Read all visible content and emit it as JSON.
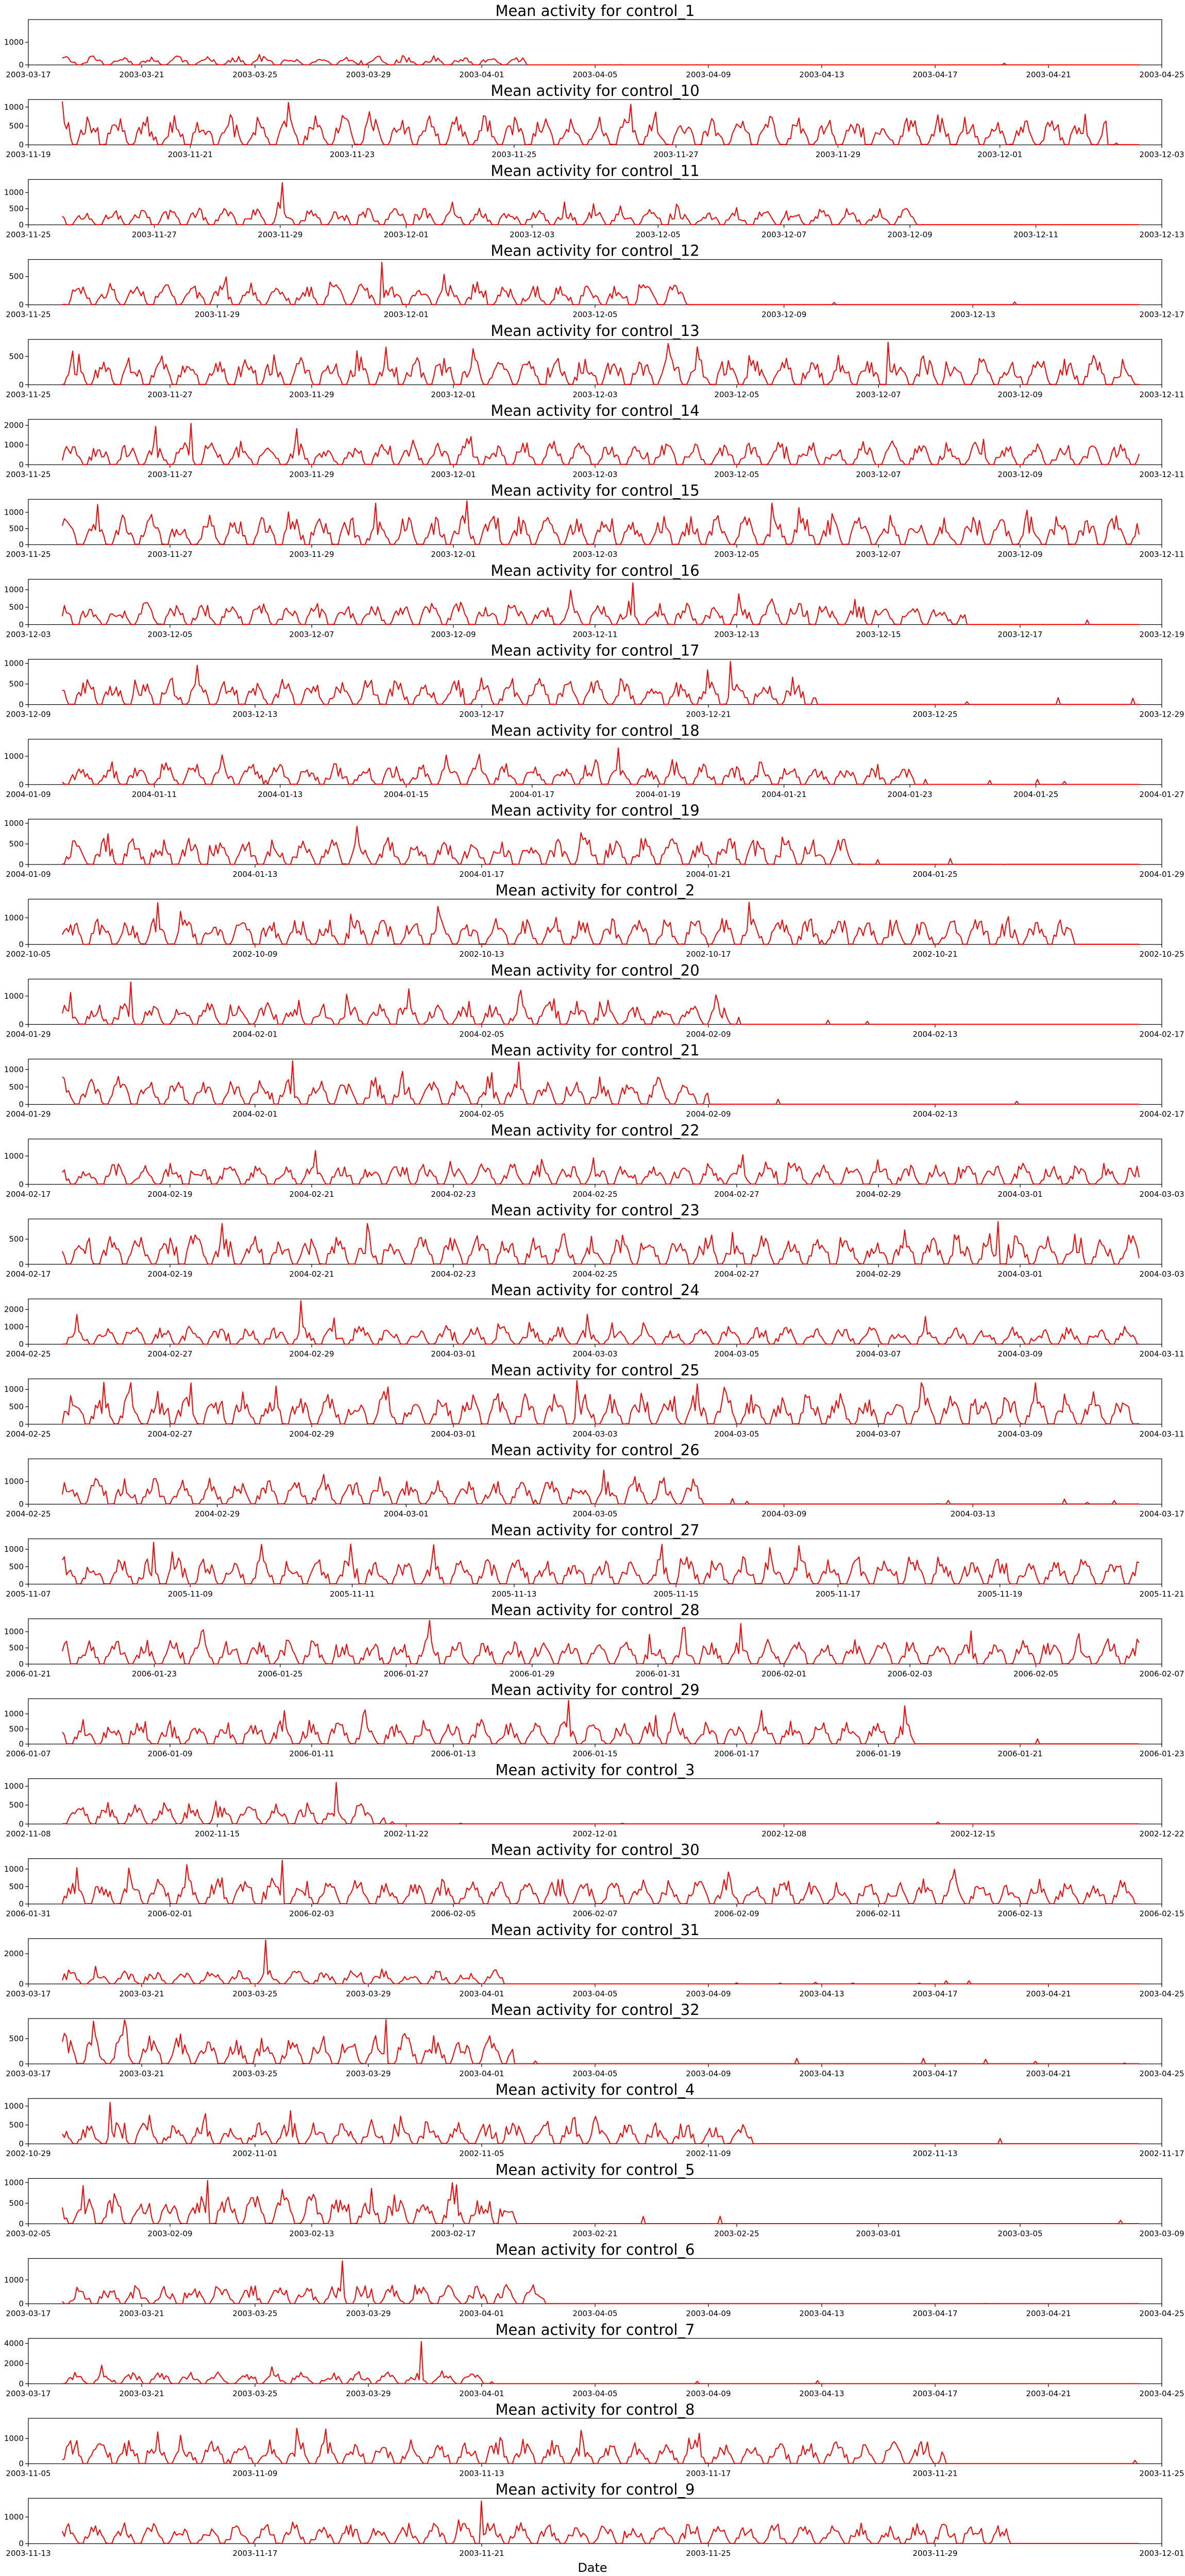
{
  "figure": {
    "xlabel": "Date",
    "line_color": "#ff0000",
    "axes_color": "#000000"
  },
  "chart_data": [
    {
      "type": "line",
      "title": "Mean activity for control_1",
      "xticks": [
        "2003-03-17",
        "2003-03-21",
        "2003-03-25",
        "2003-03-29",
        "2003-04-01",
        "2003-04-05",
        "2003-04-09",
        "2003-04-13",
        "2003-04-17",
        "2003-04-21",
        "2003-04-25"
      ],
      "yticks": [
        0,
        1000
      ],
      "ylim": [
        0,
        2000
      ],
      "active_until": 0.43,
      "base": 300,
      "peak": 1950,
      "seed": 1
    },
    {
      "type": "line",
      "title": "Mean activity for control_10",
      "xticks": [
        "2003-11-19",
        "2003-11-21",
        "2003-11-23",
        "2003-11-25",
        "2003-11-27",
        "2003-11-29",
        "2003-12-01",
        "2003-12-03"
      ],
      "yticks": [
        0,
        500,
        1000
      ],
      "ylim": [
        0,
        1200
      ],
      "active_until": 0.97,
      "base": 600,
      "peak": 1150,
      "seed": 2
    },
    {
      "type": "line",
      "title": "Mean activity for control_11",
      "xticks": [
        "2003-11-25",
        "2003-11-27",
        "2003-11-29",
        "2003-12-01",
        "2003-12-03",
        "2003-12-05",
        "2003-12-07",
        "2003-12-09",
        "2003-12-11",
        "2003-12-13"
      ],
      "yticks": [
        0,
        500,
        1000
      ],
      "ylim": [
        0,
        1400
      ],
      "active_until": 0.8,
      "base": 400,
      "peak": 1300,
      "seed": 3
    },
    {
      "type": "line",
      "title": "Mean activity for control_12",
      "xticks": [
        "2003-11-25",
        "2003-11-29",
        "2003-12-01",
        "2003-12-05",
        "2003-12-09",
        "2003-12-13",
        "2003-12-17"
      ],
      "yticks": [
        0,
        500
      ],
      "ylim": [
        0,
        800
      ],
      "active_until": 0.58,
      "base": 300,
      "peak": 750,
      "seed": 4
    },
    {
      "type": "line",
      "title": "Mean activity for control_13",
      "xticks": [
        "2003-11-25",
        "2003-11-27",
        "2003-11-29",
        "2003-12-01",
        "2003-12-03",
        "2003-12-05",
        "2003-12-07",
        "2003-12-09",
        "2003-12-11"
      ],
      "yticks": [
        0,
        500
      ],
      "ylim": [
        0,
        800
      ],
      "active_until": 1.0,
      "base": 400,
      "peak": 750,
      "seed": 5
    },
    {
      "type": "line",
      "title": "Mean activity for control_14",
      "xticks": [
        "2003-11-25",
        "2003-11-27",
        "2003-11-29",
        "2003-12-01",
        "2003-12-03",
        "2003-12-05",
        "2003-12-07",
        "2003-12-09",
        "2003-12-11"
      ],
      "yticks": [
        0,
        1000,
        2000
      ],
      "ylim": [
        0,
        2300
      ],
      "active_until": 1.0,
      "base": 900,
      "peak": 2100,
      "seed": 6
    },
    {
      "type": "line",
      "title": "Mean activity for control_15",
      "xticks": [
        "2003-11-25",
        "2003-11-27",
        "2003-11-29",
        "2003-12-01",
        "2003-12-03",
        "2003-12-05",
        "2003-12-07",
        "2003-12-09",
        "2003-12-11"
      ],
      "yticks": [
        0,
        500,
        1000
      ],
      "ylim": [
        0,
        1400
      ],
      "active_until": 1.0,
      "base": 700,
      "peak": 1350,
      "seed": 7
    },
    {
      "type": "line",
      "title": "Mean activity for control_16",
      "xticks": [
        "2003-12-03",
        "2003-12-05",
        "2003-12-07",
        "2003-12-09",
        "2003-12-11",
        "2003-12-13",
        "2003-12-15",
        "2003-12-17",
        "2003-12-19"
      ],
      "yticks": [
        0,
        500,
        1000
      ],
      "ylim": [
        0,
        1300
      ],
      "active_until": 0.84,
      "base": 500,
      "peak": 1200,
      "seed": 8
    },
    {
      "type": "line",
      "title": "Mean activity for control_17",
      "xticks": [
        "2003-12-09",
        "2003-12-13",
        "2003-12-17",
        "2003-12-21",
        "2003-12-25",
        "2003-12-29"
      ],
      "yticks": [
        0,
        500,
        1000
      ],
      "ylim": [
        0,
        1100
      ],
      "active_until": 0.7,
      "base": 500,
      "peak": 1050,
      "seed": 9
    },
    {
      "type": "line",
      "title": "Mean activity for control_18",
      "xticks": [
        "2004-01-09",
        "2004-01-11",
        "2004-01-13",
        "2004-01-15",
        "2004-01-17",
        "2004-01-19",
        "2004-01-21",
        "2004-01-23",
        "2004-01-25",
        "2004-01-27"
      ],
      "yticks": [
        0,
        1000
      ],
      "ylim": [
        0,
        1600
      ],
      "active_until": 0.79,
      "base": 600,
      "peak": 1500,
      "seed": 10
    },
    {
      "type": "line",
      "title": "Mean activity for control_19",
      "xticks": [
        "2004-01-09",
        "2004-01-13",
        "2004-01-17",
        "2004-01-21",
        "2004-01-25",
        "2004-01-29"
      ],
      "yticks": [
        0,
        500,
        1000
      ],
      "ylim": [
        0,
        1100
      ],
      "active_until": 0.74,
      "base": 500,
      "peak": 1000,
      "seed": 11
    },
    {
      "type": "line",
      "title": "Mean activity for control_2",
      "xticks": [
        "2002-10-05",
        "2002-10-09",
        "2002-10-13",
        "2002-10-17",
        "2002-10-21",
        "2002-10-25"
      ],
      "yticks": [
        0,
        1000
      ],
      "ylim": [
        0,
        1700
      ],
      "active_until": 0.94,
      "base": 800,
      "peak": 1650,
      "seed": 12
    },
    {
      "type": "line",
      "title": "Mean activity for control_20",
      "xticks": [
        "2004-01-29",
        "2004-02-01",
        "2004-02-05",
        "2004-02-09",
        "2004-02-13",
        "2004-02-17"
      ],
      "yticks": [
        0,
        1000
      ],
      "ylim": [
        0,
        1600
      ],
      "active_until": 0.63,
      "base": 600,
      "peak": 1500,
      "seed": 13
    },
    {
      "type": "line",
      "title": "Mean activity for control_21",
      "xticks": [
        "2004-01-29",
        "2004-02-01",
        "2004-02-05",
        "2004-02-09",
        "2004-02-13",
        "2004-02-17"
      ],
      "yticks": [
        0,
        500,
        1000
      ],
      "ylim": [
        0,
        1300
      ],
      "active_until": 0.6,
      "base": 600,
      "peak": 1250,
      "seed": 14
    },
    {
      "type": "line",
      "title": "Mean activity for control_22",
      "xticks": [
        "2004-02-17",
        "2004-02-19",
        "2004-02-21",
        "2004-02-23",
        "2004-02-25",
        "2004-02-27",
        "2004-02-29",
        "2004-03-01",
        "2004-03-03"
      ],
      "yticks": [
        0,
        1000
      ],
      "ylim": [
        0,
        1600
      ],
      "active_until": 1.0,
      "base": 600,
      "peak": 1500,
      "seed": 15
    },
    {
      "type": "line",
      "title": "Mean activity for control_23",
      "xticks": [
        "2004-02-17",
        "2004-02-19",
        "2004-02-21",
        "2004-02-23",
        "2004-02-25",
        "2004-02-27",
        "2004-02-29",
        "2004-03-01",
        "2004-03-03"
      ],
      "yticks": [
        0,
        500
      ],
      "ylim": [
        0,
        900
      ],
      "active_until": 1.0,
      "base": 450,
      "peak": 850,
      "seed": 16
    },
    {
      "type": "line",
      "title": "Mean activity for control_24",
      "xticks": [
        "2004-02-25",
        "2004-02-27",
        "2004-02-29",
        "2004-03-01",
        "2004-03-03",
        "2004-03-05",
        "2004-03-07",
        "2004-03-09",
        "2004-03-11"
      ],
      "yticks": [
        0,
        1000,
        2000
      ],
      "ylim": [
        0,
        2600
      ],
      "active_until": 1.0,
      "base": 800,
      "peak": 2500,
      "seed": 17
    },
    {
      "type": "line",
      "title": "Mean activity for control_25",
      "xticks": [
        "2004-02-25",
        "2004-02-27",
        "2004-02-29",
        "2004-03-01",
        "2004-03-03",
        "2004-03-05",
        "2004-03-07",
        "2004-03-09",
        "2004-03-11"
      ],
      "yticks": [
        0,
        500,
        1000
      ],
      "ylim": [
        0,
        1300
      ],
      "active_until": 1.0,
      "base": 700,
      "peak": 1250,
      "seed": 18
    },
    {
      "type": "line",
      "title": "Mean activity for control_26",
      "xticks": [
        "2004-02-25",
        "2004-02-29",
        "2004-03-01",
        "2004-03-05",
        "2004-03-09",
        "2004-03-13",
        "2004-03-17"
      ],
      "yticks": [
        0,
        1000
      ],
      "ylim": [
        0,
        2000
      ],
      "active_until": 0.6,
      "base": 900,
      "peak": 1900,
      "seed": 19
    },
    {
      "type": "line",
      "title": "Mean activity for control_27",
      "xticks": [
        "2005-11-07",
        "2005-11-09",
        "2005-11-11",
        "2005-11-13",
        "2005-11-15",
        "2005-11-17",
        "2005-11-19",
        "2005-11-21"
      ],
      "yticks": [
        0,
        500,
        1000
      ],
      "ylim": [
        0,
        1300
      ],
      "active_until": 1.0,
      "base": 600,
      "peak": 1200,
      "seed": 20
    },
    {
      "type": "line",
      "title": "Mean activity for control_28",
      "xticks": [
        "2006-01-21",
        "2006-01-23",
        "2006-01-25",
        "2006-01-27",
        "2006-01-29",
        "2006-01-31",
        "2006-02-01",
        "2006-02-03",
        "2006-02-05",
        "2006-02-07"
      ],
      "yticks": [
        0,
        500,
        1000
      ],
      "ylim": [
        0,
        1400
      ],
      "active_until": 1.0,
      "base": 600,
      "peak": 1350,
      "seed": 21
    },
    {
      "type": "line",
      "title": "Mean activity for control_29",
      "xticks": [
        "2006-01-07",
        "2006-01-09",
        "2006-01-11",
        "2006-01-13",
        "2006-01-15",
        "2006-01-17",
        "2006-01-19",
        "2006-01-21",
        "2006-01-23"
      ],
      "yticks": [
        0,
        500,
        1000
      ],
      "ylim": [
        0,
        1500
      ],
      "active_until": 0.79,
      "base": 600,
      "peak": 1450,
      "seed": 22
    },
    {
      "type": "line",
      "title": "Mean activity for control_3",
      "xticks": [
        "2002-11-08",
        "2002-11-15",
        "2002-11-22",
        "2002-12-01",
        "2002-12-08",
        "2002-12-15",
        "2002-12-22"
      ],
      "yticks": [
        0,
        500,
        1000
      ],
      "ylim": [
        0,
        1200
      ],
      "active_until": 0.3,
      "base": 450,
      "peak": 1100,
      "seed": 23
    },
    {
      "type": "line",
      "title": "Mean activity for control_30",
      "xticks": [
        "2006-01-31",
        "2006-02-01",
        "2006-02-03",
        "2006-02-05",
        "2006-02-07",
        "2006-02-09",
        "2006-02-11",
        "2006-02-13",
        "2006-02-15"
      ],
      "yticks": [
        0,
        500,
        1000
      ],
      "ylim": [
        0,
        1300
      ],
      "active_until": 1.0,
      "base": 550,
      "peak": 1250,
      "seed": 24
    },
    {
      "type": "line",
      "title": "Mean activity for control_31",
      "xticks": [
        "2003-03-17",
        "2003-03-21",
        "2003-03-25",
        "2003-03-29",
        "2003-04-01",
        "2003-04-05",
        "2003-04-09",
        "2003-04-13",
        "2003-04-17",
        "2003-04-21",
        "2003-04-25"
      ],
      "yticks": [
        0,
        2000
      ],
      "ylim": [
        0,
        3000
      ],
      "active_until": 0.41,
      "base": 700,
      "peak": 2900,
      "seed": 25
    },
    {
      "type": "line",
      "title": "Mean activity for control_32",
      "xticks": [
        "2003-03-17",
        "2003-03-21",
        "2003-03-25",
        "2003-03-29",
        "2003-04-01",
        "2003-04-05",
        "2003-04-09",
        "2003-04-13",
        "2003-04-17",
        "2003-04-21",
        "2003-04-25"
      ],
      "yticks": [
        0,
        500
      ],
      "ylim": [
        0,
        900
      ],
      "active_until": 0.42,
      "base": 450,
      "peak": 880,
      "seed": 26
    },
    {
      "type": "line",
      "title": "Mean activity for control_4",
      "xticks": [
        "2002-10-29",
        "2002-11-01",
        "2002-11-05",
        "2002-11-09",
        "2002-11-13",
        "2002-11-17"
      ],
      "yticks": [
        0,
        500,
        1000
      ],
      "ylim": [
        0,
        1200
      ],
      "active_until": 0.64,
      "base": 450,
      "peak": 1100,
      "seed": 27
    },
    {
      "type": "line",
      "title": "Mean activity for control_5",
      "xticks": [
        "2003-02-05",
        "2003-02-09",
        "2003-02-13",
        "2003-02-17",
        "2003-02-21",
        "2003-02-25",
        "2003-03-01",
        "2003-03-05",
        "2003-03-09"
      ],
      "yticks": [
        0,
        500,
        1000
      ],
      "ylim": [
        0,
        1100
      ],
      "active_until": 0.42,
      "base": 550,
      "peak": 1050,
      "seed": 28
    },
    {
      "type": "line",
      "title": "Mean activity for control_6",
      "xticks": [
        "2003-03-17",
        "2003-03-21",
        "2003-03-25",
        "2003-03-29",
        "2003-04-01",
        "2003-04-05",
        "2003-04-09",
        "2003-04-13",
        "2003-04-17",
        "2003-04-21",
        "2003-04-25"
      ],
      "yticks": [
        0,
        1000
      ],
      "ylim": [
        0,
        1900
      ],
      "active_until": 0.45,
      "base": 600,
      "peak": 1800,
      "seed": 29
    },
    {
      "type": "line",
      "title": "Mean activity for control_7",
      "xticks": [
        "2003-03-17",
        "2003-03-21",
        "2003-03-25",
        "2003-03-29",
        "2003-04-01",
        "2003-04-05",
        "2003-04-09",
        "2003-04-13",
        "2003-04-17",
        "2003-04-21",
        "2003-04-25"
      ],
      "yticks": [
        0,
        2000,
        4000
      ],
      "ylim": [
        0,
        4500
      ],
      "active_until": 0.4,
      "base": 900,
      "peak": 4200,
      "seed": 30
    },
    {
      "type": "line",
      "title": "Mean activity for control_8",
      "xticks": [
        "2003-11-05",
        "2003-11-09",
        "2003-11-13",
        "2003-11-17",
        "2003-11-21",
        "2003-11-25"
      ],
      "yticks": [
        0,
        1000
      ],
      "ylim": [
        0,
        1800
      ],
      "active_until": 0.82,
      "base": 700,
      "peak": 1700,
      "seed": 31
    },
    {
      "type": "line",
      "title": "Mean activity for control_9",
      "xticks": [
        "2003-11-13",
        "2003-11-17",
        "2003-11-21",
        "2003-11-25",
        "2003-11-29",
        "2003-12-01"
      ],
      "yticks": [
        0,
        1000
      ],
      "ylim": [
        0,
        1700
      ],
      "active_until": 0.88,
      "base": 600,
      "peak": 1600,
      "seed": 32
    }
  ]
}
